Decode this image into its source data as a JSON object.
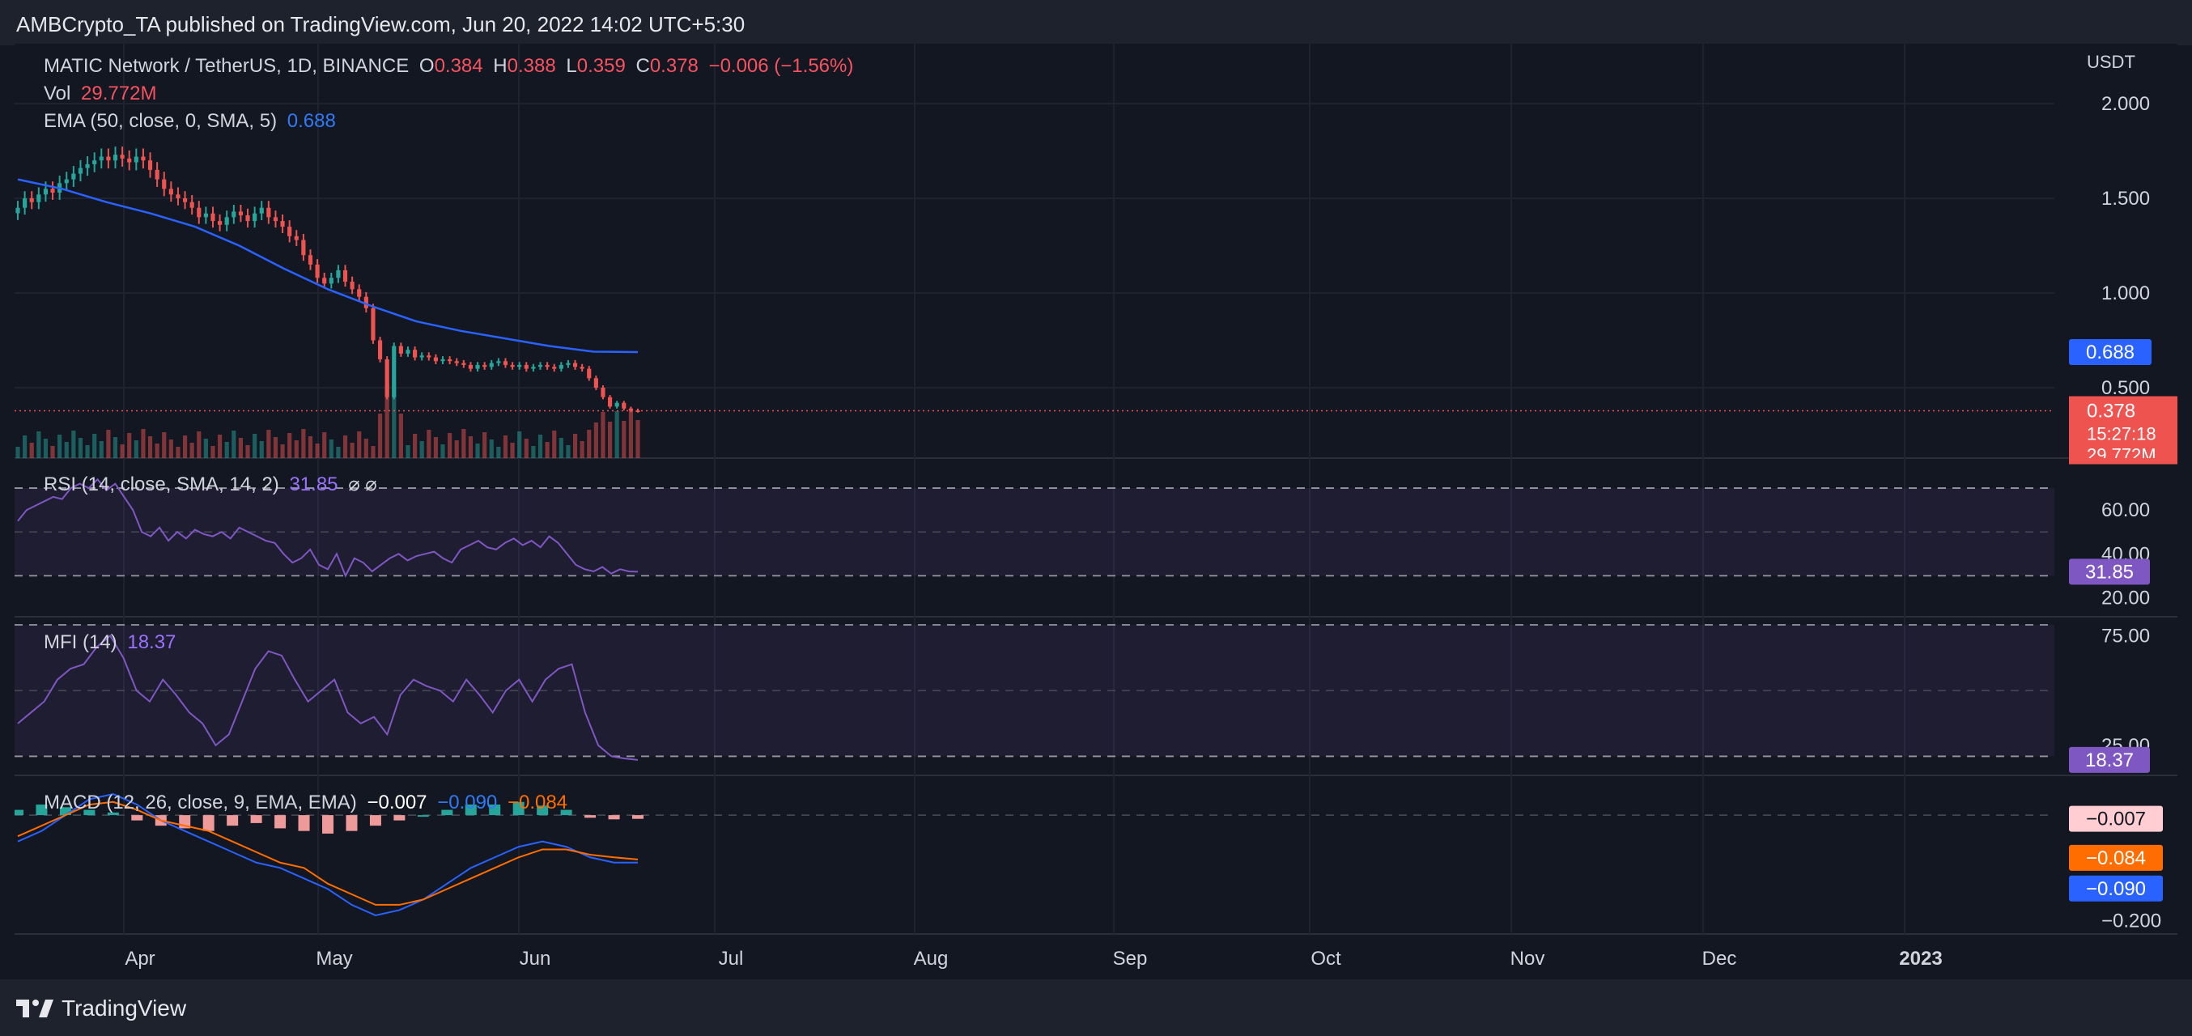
{
  "header": {
    "published_line": "AMBCrypto_TA published on TradingView.com, Jun 20, 2022 14:02 UTC+5:30"
  },
  "main_pane": {
    "symbol": "MATIC Network / TetherUS, 1D, BINANCE",
    "ohlc": {
      "o_label": "O",
      "o": "0.384",
      "h_label": "H",
      "h": "0.388",
      "l_label": "L",
      "l": "0.359",
      "c_label": "C",
      "c": "0.378",
      "change": "−0.006 (−1.56%)"
    },
    "vol_label": "Vol",
    "vol_value": "29.772M",
    "ema_label": "EMA (50, close, 0, SMA, 5)",
    "ema_value": "0.688",
    "currency": "USDT",
    "price_tag": "0.378",
    "countdown": "15:27:18",
    "vol_tag": "29.772M",
    "ema_tag": "0.688"
  },
  "rsi_pane": {
    "label": "RSI (14, close, SMA, 14, 2)",
    "value": "31.85",
    "extras": "⌀ ⌀",
    "tag": "31.85"
  },
  "mfi_pane": {
    "label": "MFI (14)",
    "value": "18.37",
    "tag": "18.37"
  },
  "macd_pane": {
    "label": "MACD (12, 26, close, 9, EMA, EMA)",
    "hist": "−0.007",
    "macd": "−0.090",
    "signal": "−0.084",
    "tag_hist": "−0.007",
    "tag_signal": "−0.084",
    "tag_macd": "−0.090"
  },
  "footer": {
    "brand": "TradingView"
  },
  "colors": {
    "background": "#131722",
    "up": "#26a69a",
    "down": "#ef5350",
    "ema": "#2962ff",
    "rsi": "#7e57c2",
    "macd": "#2962ff",
    "signal": "#ff6d00"
  },
  "chart_data": [
    {
      "type": "candlestick",
      "title": "MATIC Network / TetherUS, 1D, BINANCE",
      "x_ticks": [
        "Apr",
        "May",
        "Jun",
        "Jul",
        "Aug",
        "Sep",
        "Oct",
        "Nov",
        "Dec",
        "2023"
      ],
      "y_ticks": [
        "2.000",
        "1.500",
        "1.000",
        "0.500"
      ],
      "ylim": [
        0.35,
        2.0
      ],
      "close": [
        1.45,
        1.5,
        1.48,
        1.52,
        1.55,
        1.53,
        1.58,
        1.6,
        1.63,
        1.66,
        1.68,
        1.7,
        1.72,
        1.7,
        1.73,
        1.71,
        1.69,
        1.72,
        1.7,
        1.65,
        1.6,
        1.55,
        1.52,
        1.5,
        1.48,
        1.45,
        1.4,
        1.42,
        1.38,
        1.36,
        1.4,
        1.43,
        1.41,
        1.38,
        1.42,
        1.45,
        1.4,
        1.38,
        1.35,
        1.3,
        1.28,
        1.2,
        1.15,
        1.08,
        1.05,
        1.08,
        1.12,
        1.06,
        1.02,
        0.98,
        0.92,
        0.75,
        0.65,
        0.45,
        0.72,
        0.68,
        0.7,
        0.66,
        0.67,
        0.66,
        0.64,
        0.65,
        0.64,
        0.63,
        0.62,
        0.6,
        0.62,
        0.61,
        0.63,
        0.64,
        0.62,
        0.61,
        0.62,
        0.6,
        0.61,
        0.62,
        0.61,
        0.6,
        0.62,
        0.63,
        0.61,
        0.6,
        0.55,
        0.5,
        0.45,
        0.4,
        0.42,
        0.39,
        0.38,
        0.378
      ],
      "ema50": [
        1.6,
        1.55,
        1.48,
        1.42,
        1.35,
        1.25,
        1.13,
        1.02,
        0.93,
        0.85,
        0.8,
        0.76,
        0.72,
        0.69,
        0.688
      ],
      "volume_label": "29.772M"
    },
    {
      "type": "line",
      "title": "RSI (14, close, SMA, 14, 2)",
      "y_ticks": [
        "60.00",
        "40.00",
        "20.00"
      ],
      "ylim": [
        15,
        80
      ],
      "values": [
        55,
        60,
        62,
        64,
        66,
        65,
        70,
        72,
        70,
        74,
        69,
        72,
        66,
        60,
        50,
        48,
        52,
        46,
        50,
        47,
        51,
        49,
        48,
        50,
        47,
        52,
        50,
        48,
        46,
        45,
        40,
        36,
        38,
        42,
        35,
        33,
        40,
        30,
        38,
        36,
        32,
        35,
        38,
        40,
        37,
        39,
        40,
        41,
        38,
        36,
        42,
        44,
        46,
        43,
        42,
        45,
        47,
        44,
        46,
        43,
        48,
        45,
        40,
        35,
        33,
        32,
        34,
        31,
        33,
        32,
        31.85
      ],
      "last": 31.85
    },
    {
      "type": "line",
      "title": "MFI (14)",
      "y_ticks": [
        "75.00",
        "25.00"
      ],
      "ylim": [
        15,
        80
      ],
      "values": [
        35,
        40,
        45,
        55,
        60,
        62,
        70,
        75,
        65,
        50,
        45,
        55,
        48,
        40,
        35,
        25,
        30,
        45,
        60,
        68,
        66,
        55,
        45,
        50,
        55,
        40,
        35,
        38,
        30,
        48,
        55,
        52,
        50,
        45,
        55,
        48,
        40,
        50,
        55,
        45,
        55,
        60,
        62,
        40,
        25,
        20,
        19,
        18.37
      ],
      "last": 18.37
    },
    {
      "type": "bar+line",
      "title": "MACD (12, 26, close, 9, EMA, EMA)",
      "y_ticks": [
        "−0.200"
      ],
      "ylim": [
        -0.21,
        0.06
      ],
      "macd": [
        -0.05,
        -0.03,
        0.0,
        0.03,
        0.04,
        0.02,
        -0.01,
        -0.03,
        -0.05,
        -0.07,
        -0.09,
        -0.1,
        -0.12,
        -0.14,
        -0.17,
        -0.19,
        -0.18,
        -0.16,
        -0.13,
        -0.1,
        -0.08,
        -0.06,
        -0.05,
        -0.06,
        -0.08,
        -0.09,
        -0.09
      ],
      "signal": [
        -0.04,
        -0.02,
        0.0,
        0.02,
        0.025,
        0.01,
        -0.01,
        -0.02,
        -0.03,
        -0.05,
        -0.07,
        -0.09,
        -0.1,
        -0.13,
        -0.15,
        -0.17,
        -0.17,
        -0.16,
        -0.14,
        -0.12,
        -0.1,
        -0.08,
        -0.065,
        -0.065,
        -0.075,
        -0.08,
        -0.084
      ],
      "hist": [
        0.01,
        0.02,
        0.015,
        0.01,
        0.005,
        -0.01,
        -0.02,
        -0.025,
        -0.03,
        -0.02,
        -0.015,
        -0.025,
        -0.03,
        -0.035,
        -0.03,
        -0.02,
        -0.01,
        0.0,
        0.01,
        0.02,
        0.02,
        0.025,
        0.018,
        0.01,
        -0.005,
        -0.008,
        -0.007
      ],
      "last": {
        "hist": -0.007,
        "macd": -0.09,
        "signal": -0.084
      }
    }
  ]
}
